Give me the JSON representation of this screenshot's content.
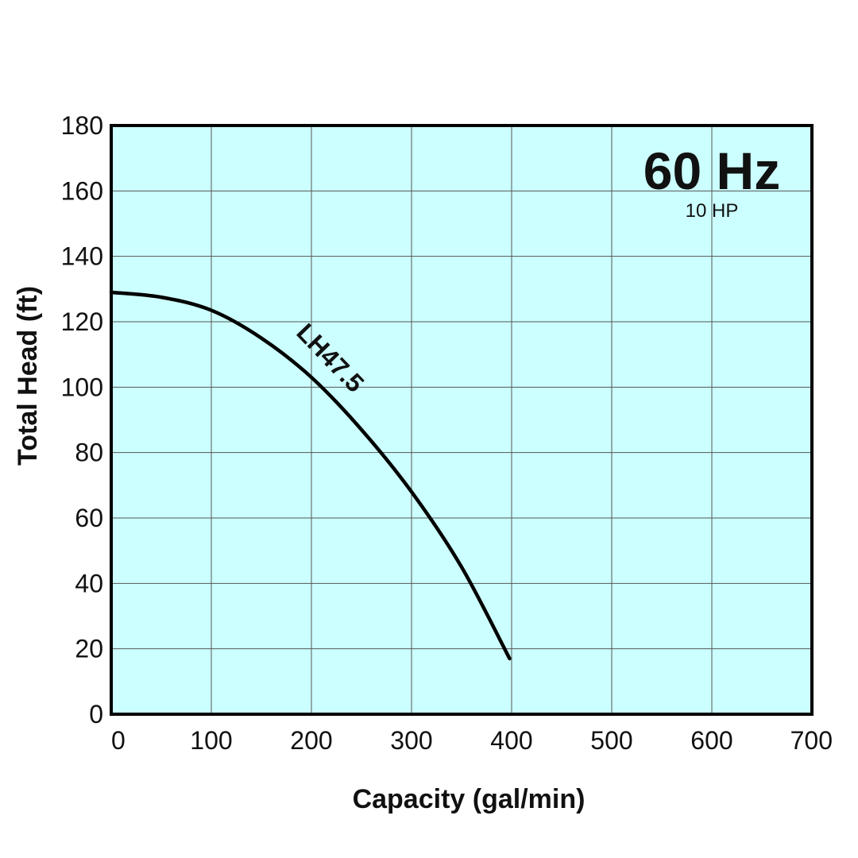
{
  "chart_data": {
    "type": "line",
    "xlabel": "Capacity (gal/min)",
    "ylabel": "Total Head (ft)",
    "xlim": [
      0,
      700
    ],
    "ylim": [
      0,
      180
    ],
    "x_ticks": [
      0,
      100,
      200,
      300,
      400,
      500,
      600,
      700
    ],
    "y_ticks": [
      0,
      20,
      40,
      60,
      80,
      100,
      120,
      140,
      160,
      180
    ],
    "grid": true,
    "background_color": "#ccffff",
    "line_color": "#000000",
    "annotations": {
      "frequency": "60 Hz",
      "power": "10 HP"
    },
    "series": [
      {
        "name": "LH47.5",
        "x": [
          0,
          50,
          100,
          150,
          200,
          250,
          300,
          350,
          398
        ],
        "y": [
          129,
          127.5,
          123.5,
          115,
          103,
          87,
          68,
          45,
          17
        ]
      }
    ]
  }
}
